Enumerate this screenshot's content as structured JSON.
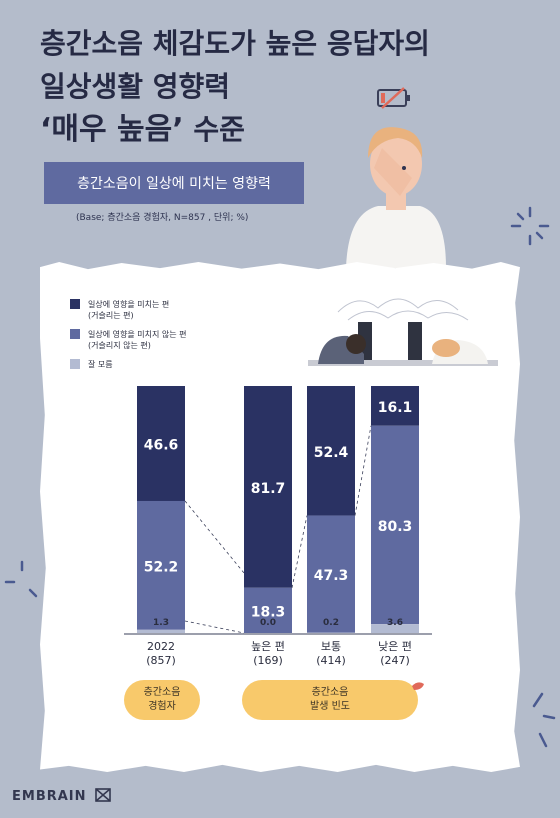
{
  "title": {
    "line1": "층간소음 체감도가 높은 응답자의",
    "line2": "일상생활 영향력",
    "line3_highlight": "‘매우 높음’",
    "line3_rest": " 수준"
  },
  "subtitle": "층간소음이 일상에 미치는 영향력",
  "base_note": "(Base; 층간소음 경험자, N=857 , 단위; %)",
  "brand": "EMBRAIN",
  "pills": {
    "experienced": "층간소음\n경험자",
    "frequency": "층간소음\n발생 빈도"
  },
  "colors": {
    "background": "#b4bccb",
    "affected": "#2a3263",
    "not_affected": "#5f6aa0",
    "unknown": "#b3bbd2",
    "pill": "#f8c96b"
  },
  "chart_data": {
    "type": "bar",
    "stacked": true,
    "categories": [
      "2022\n(857)",
      "높은 편\n(169)",
      "보통\n(414)",
      "낮은 편\n(247)"
    ],
    "series": [
      {
        "name": "일상에 영향을 미치는 편\n(거슬리는 편)",
        "values": [
          46.6,
          81.7,
          52.4,
          16.1
        ]
      },
      {
        "name": "일상에 영향을 미치지 않는 편\n(거슬리지 않는 편)",
        "values": [
          52.2,
          18.3,
          47.3,
          80.3
        ]
      },
      {
        "name": "잘 모름",
        "values": [
          1.3,
          0.0,
          0.2,
          3.6
        ]
      }
    ],
    "ylim": [
      0,
      100
    ],
    "legend": "top-left"
  }
}
